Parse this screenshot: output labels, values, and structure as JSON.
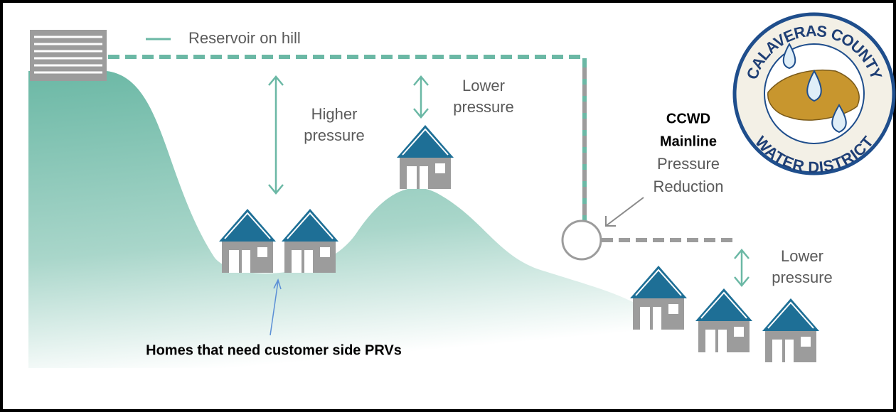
{
  "legend": {
    "label": "Reservoir on hill"
  },
  "annotations": [
    {
      "lines": [
        "Higher",
        "pressure"
      ]
    },
    {
      "lines": [
        "Lower",
        "pressure"
      ]
    },
    {
      "lines": [
        "Lower",
        "pressure"
      ]
    }
  ],
  "prv_label": {
    "lines": [
      "CCWD",
      "Mainline",
      "Pressure",
      "Reduction"
    ]
  },
  "callout": "Homes that need customer side PRVs",
  "logo": {
    "top": "CALAVERAS COUNTY",
    "bottom": "WATER DISTRICT"
  }
}
